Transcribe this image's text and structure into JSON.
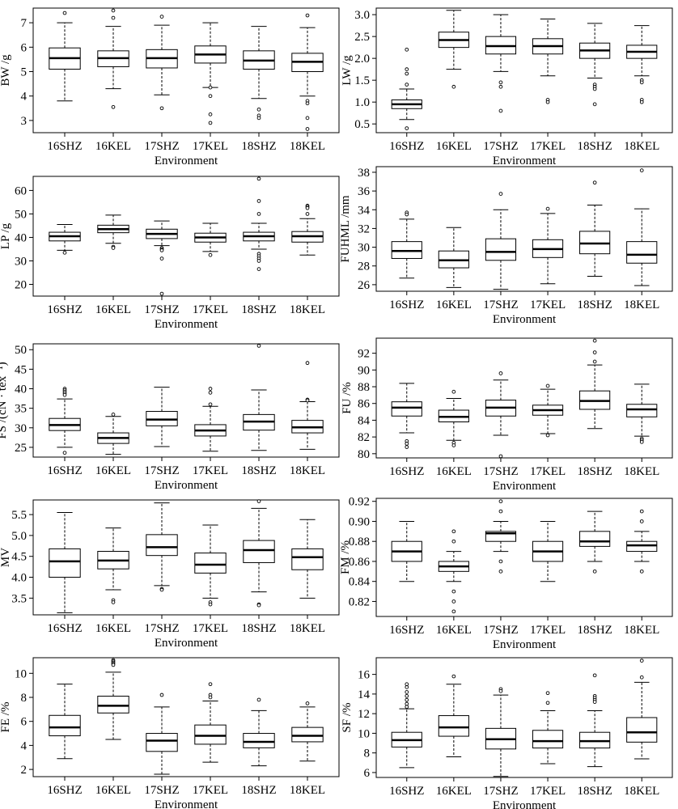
{
  "figure": {
    "categories": [
      "16SHZ",
      "16KEL",
      "17SHZ",
      "17KEL",
      "18SHZ",
      "18KEL"
    ],
    "xlabel": "Environment"
  },
  "chart_data": [
    {
      "type": "boxplot",
      "ylabel": "BW /g",
      "ylim": [
        2.5,
        7.6
      ],
      "yticks": [
        3,
        4,
        5,
        6,
        7
      ],
      "categories": [
        "16SHZ",
        "16KEL",
        "17SHZ",
        "17KEL",
        "18SHZ",
        "18KEL"
      ],
      "xlabel": "Environment",
      "boxes": [
        {
          "whisker_low": 3.8,
          "q1": 5.1,
          "median": 5.55,
          "q3": 5.97,
          "whisker_high": 7.0,
          "outliers": [
            7.4
          ]
        },
        {
          "whisker_low": 4.3,
          "q1": 5.2,
          "median": 5.55,
          "q3": 5.85,
          "whisker_high": 6.85,
          "outliers": [
            7.5,
            7.2,
            3.55
          ]
        },
        {
          "whisker_low": 4.05,
          "q1": 5.15,
          "median": 5.55,
          "q3": 5.9,
          "whisker_high": 6.9,
          "outliers": [
            7.25,
            3.5
          ]
        },
        {
          "whisker_low": 4.35,
          "q1": 5.35,
          "median": 5.7,
          "q3": 6.05,
          "whisker_high": 7.0,
          "outliers": [
            4.35,
            4.0,
            3.25,
            2.9
          ]
        },
        {
          "whisker_low": 3.9,
          "q1": 5.1,
          "median": 5.45,
          "q3": 5.85,
          "whisker_high": 6.85,
          "outliers": [
            3.45,
            3.2,
            3.1
          ]
        },
        {
          "whisker_low": 4.0,
          "q1": 5.0,
          "median": 5.4,
          "q3": 5.75,
          "whisker_high": 6.8,
          "outliers": [
            7.3,
            3.8,
            3.7,
            3.1,
            2.65
          ]
        }
      ]
    },
    {
      "type": "boxplot",
      "ylabel": "LW /g",
      "ylim": [
        0.3,
        3.15
      ],
      "yticks": [
        0.5,
        1.0,
        1.5,
        2.0,
        2.5,
        3.0
      ],
      "categories": [
        "16SHZ",
        "16KEL",
        "17SHZ",
        "17KEL",
        "18SHZ",
        "18KEL"
      ],
      "xlabel": "Environment",
      "boxes": [
        {
          "whisker_low": 0.6,
          "q1": 0.85,
          "median": 0.95,
          "q3": 1.05,
          "whisker_high": 1.3,
          "outliers": [
            2.2,
            1.75,
            1.65,
            1.4,
            0.4
          ]
        },
        {
          "whisker_low": 1.75,
          "q1": 2.25,
          "median": 2.42,
          "q3": 2.6,
          "whisker_high": 3.1,
          "outliers": [
            1.35
          ]
        },
        {
          "whisker_low": 1.7,
          "q1": 2.1,
          "median": 2.28,
          "q3": 2.5,
          "whisker_high": 3.0,
          "outliers": [
            1.45,
            1.35,
            0.8
          ]
        },
        {
          "whisker_low": 1.6,
          "q1": 2.1,
          "median": 2.28,
          "q3": 2.45,
          "whisker_high": 2.9,
          "outliers": [
            1.05,
            1.0
          ]
        },
        {
          "whisker_low": 1.55,
          "q1": 2.0,
          "median": 2.18,
          "q3": 2.35,
          "whisker_high": 2.8,
          "outliers": [
            1.4,
            1.35,
            1.3,
            0.95
          ]
        },
        {
          "whisker_low": 1.6,
          "q1": 2.0,
          "median": 2.15,
          "q3": 2.3,
          "whisker_high": 2.75,
          "outliers": [
            1.5,
            1.45,
            1.05,
            1.0
          ]
        }
      ]
    },
    {
      "type": "boxplot",
      "ylabel": "LP /g",
      "ylim": [
        15,
        66
      ],
      "yticks": [
        20,
        30,
        40,
        50,
        60
      ],
      "categories": [
        "16SHZ",
        "16KEL",
        "17SHZ",
        "17KEL",
        "18SHZ",
        "18KEL"
      ],
      "xlabel": "Environment",
      "boxes": [
        {
          "whisker_low": 34.5,
          "q1": 38.5,
          "median": 40.5,
          "q3": 42.2,
          "whisker_high": 45.5,
          "outliers": [
            33.5
          ]
        },
        {
          "whisker_low": 37.5,
          "q1": 42.0,
          "median": 43.5,
          "q3": 45.2,
          "whisker_high": 49.5,
          "outliers": [
            36.0,
            35.5
          ]
        },
        {
          "whisker_low": 36.5,
          "q1": 39.5,
          "median": 41.5,
          "q3": 43.5,
          "whisker_high": 47.0,
          "outliers": [
            35.5,
            35.0,
            34.5,
            31.0,
            16.0
          ]
        },
        {
          "whisker_low": 34.0,
          "q1": 38.0,
          "median": 40.0,
          "q3": 41.8,
          "whisker_high": 46.0,
          "outliers": [
            32.5
          ]
        },
        {
          "whisker_low": 35.0,
          "q1": 38.5,
          "median": 40.5,
          "q3": 42.2,
          "whisker_high": 46.0,
          "outliers": [
            65.0,
            55.5,
            50.0,
            33.0,
            32.0,
            31.0,
            30.0,
            26.5
          ]
        },
        {
          "whisker_low": 32.5,
          "q1": 38.0,
          "median": 40.5,
          "q3": 42.5,
          "whisker_high": 48.0,
          "outliers": [
            53.5,
            53.0,
            52.5,
            50.0
          ]
        }
      ]
    },
    {
      "type": "boxplot",
      "ylabel": "FUHML /mm",
      "ylim": [
        25.3,
        38.6
      ],
      "yticks": [
        26,
        28,
        30,
        32,
        34,
        36,
        38
      ],
      "categories": [
        "16SHZ",
        "16KEL",
        "17SHZ",
        "17KEL",
        "18SHZ",
        "18KEL"
      ],
      "xlabel": "Environment",
      "boxes": [
        {
          "whisker_low": 26.7,
          "q1": 28.8,
          "median": 29.6,
          "q3": 30.6,
          "whisker_high": 33.0,
          "outliers": [
            33.7,
            33.5
          ]
        },
        {
          "whisker_low": 25.7,
          "q1": 27.8,
          "median": 28.6,
          "q3": 29.6,
          "whisker_high": 32.1,
          "outliers": []
        },
        {
          "whisker_low": 25.5,
          "q1": 28.6,
          "median": 29.5,
          "q3": 30.9,
          "whisker_high": 34.0,
          "outliers": [
            35.7
          ]
        },
        {
          "whisker_low": 26.1,
          "q1": 28.9,
          "median": 29.8,
          "q3": 30.8,
          "whisker_high": 33.6,
          "outliers": [
            34.1
          ]
        },
        {
          "whisker_low": 26.9,
          "q1": 29.3,
          "median": 30.4,
          "q3": 31.7,
          "whisker_high": 34.5,
          "outliers": [
            36.9
          ]
        },
        {
          "whisker_low": 25.9,
          "q1": 28.3,
          "median": 29.2,
          "q3": 30.6,
          "whisker_high": 34.1,
          "outliers": [
            38.2
          ]
        }
      ]
    },
    {
      "type": "boxplot",
      "ylabel": "FS /(cN · tex⁻¹)",
      "ylim": [
        22.5,
        51.5
      ],
      "yticks": [
        25,
        30,
        35,
        40,
        45,
        50
      ],
      "categories": [
        "16SHZ",
        "16KEL",
        "17SHZ",
        "17KEL",
        "18SHZ",
        "18KEL"
      ],
      "xlabel": "Environment",
      "boxes": [
        {
          "whisker_low": 25.0,
          "q1": 29.3,
          "median": 30.7,
          "q3": 32.4,
          "whisker_high": 37.4,
          "outliers": [
            40.0,
            39.6,
            39.2,
            38.8,
            38.4,
            23.6
          ]
        },
        {
          "whisker_low": 23.2,
          "q1": 26.0,
          "median": 27.4,
          "q3": 28.7,
          "whisker_high": 32.9,
          "outliers": [
            33.4
          ]
        },
        {
          "whisker_low": 25.2,
          "q1": 30.5,
          "median": 32.1,
          "q3": 34.2,
          "whisker_high": 40.4,
          "outliers": []
        },
        {
          "whisker_low": 24.0,
          "q1": 27.9,
          "median": 29.3,
          "q3": 30.8,
          "whisker_high": 35.5,
          "outliers": [
            40.0,
            39.0,
            36.0
          ]
        },
        {
          "whisker_low": 24.2,
          "q1": 29.4,
          "median": 31.6,
          "q3": 33.4,
          "whisker_high": 39.7,
          "outliers": [
            51.0
          ]
        },
        {
          "whisker_low": 24.5,
          "q1": 28.7,
          "median": 30.1,
          "q3": 31.9,
          "whisker_high": 36.7,
          "outliers": [
            46.6,
            37.2,
            37.0
          ]
        }
      ]
    },
    {
      "type": "boxplot",
      "ylabel": "FU /%",
      "ylim": [
        79.5,
        93.8
      ],
      "yticks": [
        80,
        82,
        84,
        86,
        88,
        90,
        92
      ],
      "categories": [
        "16SHZ",
        "16KEL",
        "17SHZ",
        "17KEL",
        "18SHZ",
        "18KEL"
      ],
      "xlabel": "Environment",
      "boxes": [
        {
          "whisker_low": 82.5,
          "q1": 84.5,
          "median": 85.5,
          "q3": 86.2,
          "whisker_high": 88.4,
          "outliers": [
            81.5,
            81.2,
            80.8
          ]
        },
        {
          "whisker_low": 81.6,
          "q1": 83.8,
          "median": 84.4,
          "q3": 85.2,
          "whisker_high": 86.6,
          "outliers": [
            87.4,
            81.3,
            81.0
          ]
        },
        {
          "whisker_low": 82.2,
          "q1": 84.5,
          "median": 85.5,
          "q3": 86.4,
          "whisker_high": 88.8,
          "outliers": [
            89.6,
            79.7
          ]
        },
        {
          "whisker_low": 82.4,
          "q1": 84.6,
          "median": 85.2,
          "q3": 85.8,
          "whisker_high": 87.7,
          "outliers": [
            88.1,
            82.2
          ]
        },
        {
          "whisker_low": 83.0,
          "q1": 85.3,
          "median": 86.3,
          "q3": 87.5,
          "whisker_high": 90.6,
          "outliers": [
            93.5,
            92.1,
            91.0
          ]
        },
        {
          "whisker_low": 82.1,
          "q1": 84.4,
          "median": 85.3,
          "q3": 85.9,
          "whisker_high": 88.3,
          "outliers": [
            81.8,
            81.6,
            81.4
          ]
        }
      ]
    },
    {
      "type": "boxplot",
      "ylabel": "MV",
      "ylim": [
        3.1,
        5.85
      ],
      "yticks": [
        3.5,
        4.0,
        4.5,
        5.0,
        5.5
      ],
      "categories": [
        "16SHZ",
        "16KEL",
        "17SHZ",
        "17KEL",
        "18SHZ",
        "18KEL"
      ],
      "xlabel": "Environment",
      "boxes": [
        {
          "whisker_low": 3.15,
          "q1": 4.0,
          "median": 4.38,
          "q3": 4.68,
          "whisker_high": 5.55,
          "outliers": []
        },
        {
          "whisker_low": 3.7,
          "q1": 4.2,
          "median": 4.4,
          "q3": 4.62,
          "whisker_high": 5.18,
          "outliers": [
            3.45,
            3.4
          ]
        },
        {
          "whisker_low": 3.8,
          "q1": 4.52,
          "median": 4.72,
          "q3": 5.02,
          "whisker_high": 5.78,
          "outliers": [
            3.72,
            3.7
          ]
        },
        {
          "whisker_low": 3.5,
          "q1": 4.1,
          "median": 4.3,
          "q3": 4.58,
          "whisker_high": 5.25,
          "outliers": [
            3.4,
            3.35
          ]
        },
        {
          "whisker_low": 3.65,
          "q1": 4.35,
          "median": 4.65,
          "q3": 4.88,
          "whisker_high": 5.65,
          "outliers": [
            5.82,
            3.35,
            3.33
          ]
        },
        {
          "whisker_low": 3.5,
          "q1": 4.18,
          "median": 4.48,
          "q3": 4.68,
          "whisker_high": 5.38,
          "outliers": []
        }
      ]
    },
    {
      "type": "boxplot",
      "ylabel": "FM /%",
      "ylim": [
        0.805,
        0.923
      ],
      "yticks": [
        0.82,
        0.84,
        0.86,
        0.88,
        0.9,
        0.92
      ],
      "categories": [
        "16SHZ",
        "16KEL",
        "17SHZ",
        "17KEL",
        "18SHZ",
        "18KEL"
      ],
      "xlabel": "Environment",
      "boxes": [
        {
          "whisker_low": 0.84,
          "q1": 0.86,
          "median": 0.87,
          "q3": 0.88,
          "whisker_high": 0.9,
          "outliers": []
        },
        {
          "whisker_low": 0.84,
          "q1": 0.85,
          "median": 0.855,
          "q3": 0.86,
          "whisker_high": 0.87,
          "outliers": [
            0.89,
            0.88,
            0.83,
            0.82,
            0.81
          ]
        },
        {
          "whisker_low": 0.87,
          "q1": 0.88,
          "median": 0.888,
          "q3": 0.89,
          "whisker_high": 0.9,
          "outliers": [
            0.92,
            0.91,
            0.86,
            0.85
          ]
        },
        {
          "whisker_low": 0.84,
          "q1": 0.86,
          "median": 0.87,
          "q3": 0.88,
          "whisker_high": 0.9,
          "outliers": []
        },
        {
          "whisker_low": 0.86,
          "q1": 0.875,
          "median": 0.88,
          "q3": 0.89,
          "whisker_high": 0.91,
          "outliers": [
            0.85
          ]
        },
        {
          "whisker_low": 0.86,
          "q1": 0.87,
          "median": 0.876,
          "q3": 0.88,
          "whisker_high": 0.89,
          "outliers": [
            0.91,
            0.9,
            0.85
          ]
        }
      ]
    },
    {
      "type": "boxplot",
      "ylabel": "FE /%",
      "ylim": [
        1.4,
        11.3
      ],
      "yticks": [
        2,
        4,
        6,
        8,
        10
      ],
      "categories": [
        "16SHZ",
        "16KEL",
        "17SHZ",
        "17KEL",
        "18SHZ",
        "18KEL"
      ],
      "xlabel": "Environment",
      "boxes": [
        {
          "whisker_low": 2.9,
          "q1": 4.8,
          "median": 5.5,
          "q3": 6.5,
          "whisker_high": 9.1,
          "outliers": []
        },
        {
          "whisker_low": 4.5,
          "q1": 6.7,
          "median": 7.3,
          "q3": 8.1,
          "whisker_high": 10.1,
          "outliers": [
            11.1,
            11.0,
            10.9,
            10.8,
            10.7
          ]
        },
        {
          "whisker_low": 1.6,
          "q1": 3.5,
          "median": 4.4,
          "q3": 5.0,
          "whisker_high": 7.2,
          "outliers": [
            8.2
          ]
        },
        {
          "whisker_low": 2.6,
          "q1": 4.1,
          "median": 4.8,
          "q3": 5.7,
          "whisker_high": 7.7,
          "outliers": [
            9.1,
            8.2,
            8.0
          ]
        },
        {
          "whisker_low": 2.3,
          "q1": 3.8,
          "median": 4.3,
          "q3": 5.0,
          "whisker_high": 6.9,
          "outliers": [
            7.8
          ]
        },
        {
          "whisker_low": 2.7,
          "q1": 4.3,
          "median": 4.8,
          "q3": 5.5,
          "whisker_high": 7.2,
          "outliers": [
            7.5
          ]
        }
      ]
    },
    {
      "type": "boxplot",
      "ylabel": "SF /%",
      "ylim": [
        5.5,
        17.7
      ],
      "yticks": [
        6,
        8,
        10,
        12,
        14,
        16
      ],
      "categories": [
        "16SHZ",
        "16KEL",
        "17SHZ",
        "17KEL",
        "18SHZ",
        "18KEL"
      ],
      "xlabel": "Environment",
      "boxes": [
        {
          "whisker_low": 6.5,
          "q1": 8.6,
          "median": 9.3,
          "q3": 10.1,
          "whisker_high": 12.5,
          "outliers": [
            15.0,
            14.7,
            14.2,
            13.8,
            13.4,
            13.0,
            12.7
          ]
        },
        {
          "whisker_low": 7.6,
          "q1": 9.7,
          "median": 10.6,
          "q3": 11.8,
          "whisker_high": 15.0,
          "outliers": [
            15.8
          ]
        },
        {
          "whisker_low": 5.6,
          "q1": 8.4,
          "median": 9.4,
          "q3": 10.5,
          "whisker_high": 13.9,
          "outliers": [
            14.5,
            14.3
          ]
        },
        {
          "whisker_low": 6.9,
          "q1": 8.5,
          "median": 9.2,
          "q3": 10.3,
          "whisker_high": 12.3,
          "outliers": [
            14.1,
            13.1
          ]
        },
        {
          "whisker_low": 6.6,
          "q1": 8.5,
          "median": 9.2,
          "q3": 10.1,
          "whisker_high": 12.3,
          "outliers": [
            15.9,
            13.8,
            13.6,
            13.4,
            13.2
          ]
        },
        {
          "whisker_low": 7.4,
          "q1": 9.1,
          "median": 10.1,
          "q3": 11.6,
          "whisker_high": 15.2,
          "outliers": [
            17.4,
            15.7
          ]
        }
      ]
    }
  ]
}
